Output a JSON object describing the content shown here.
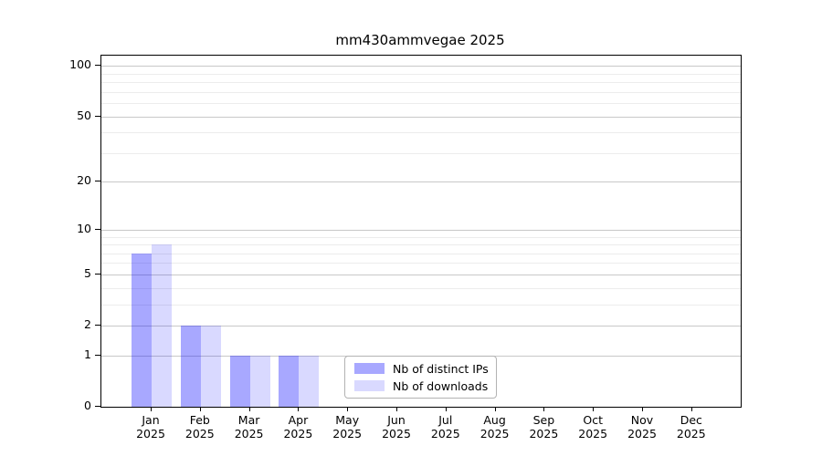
{
  "chart_data": {
    "type": "bar",
    "title": "mm430ammvegae 2025",
    "categories": [
      "Jan",
      "Feb",
      "Mar",
      "Apr",
      "May",
      "Jun",
      "Jul",
      "Aug",
      "Sep",
      "Oct",
      "Nov",
      "Dec"
    ],
    "x_sublabel": "2025",
    "series": [
      {
        "name": "Nb of distinct IPs",
        "color": "rgba(0,0,255,0.34)",
        "color_hex": "#a8a8ff",
        "values": [
          7,
          2,
          1,
          1,
          0,
          0,
          0,
          0,
          0,
          0,
          0,
          0
        ]
      },
      {
        "name": "Nb of downloads",
        "color": "rgba(0,0,255,0.15)",
        "color_hex": "#d8d8ff",
        "values": [
          8,
          2,
          1,
          1,
          0,
          0,
          0,
          0,
          0,
          0,
          0,
          0
        ]
      }
    ],
    "yscale": "log1p",
    "ylim": [
      0,
      115
    ],
    "yticks": [
      0,
      1,
      2,
      5,
      10,
      20,
      50,
      100
    ],
    "minor_gridlines": [
      3,
      4,
      6,
      7,
      8,
      9,
      30,
      40,
      60,
      70,
      80,
      90
    ],
    "grid": "horizontal",
    "legend_position": "lower center",
    "colors": {
      "major_grid": "#c8c8c8",
      "minor_grid": "#ececec",
      "axis": "#000000",
      "background": "#ffffff"
    }
  }
}
